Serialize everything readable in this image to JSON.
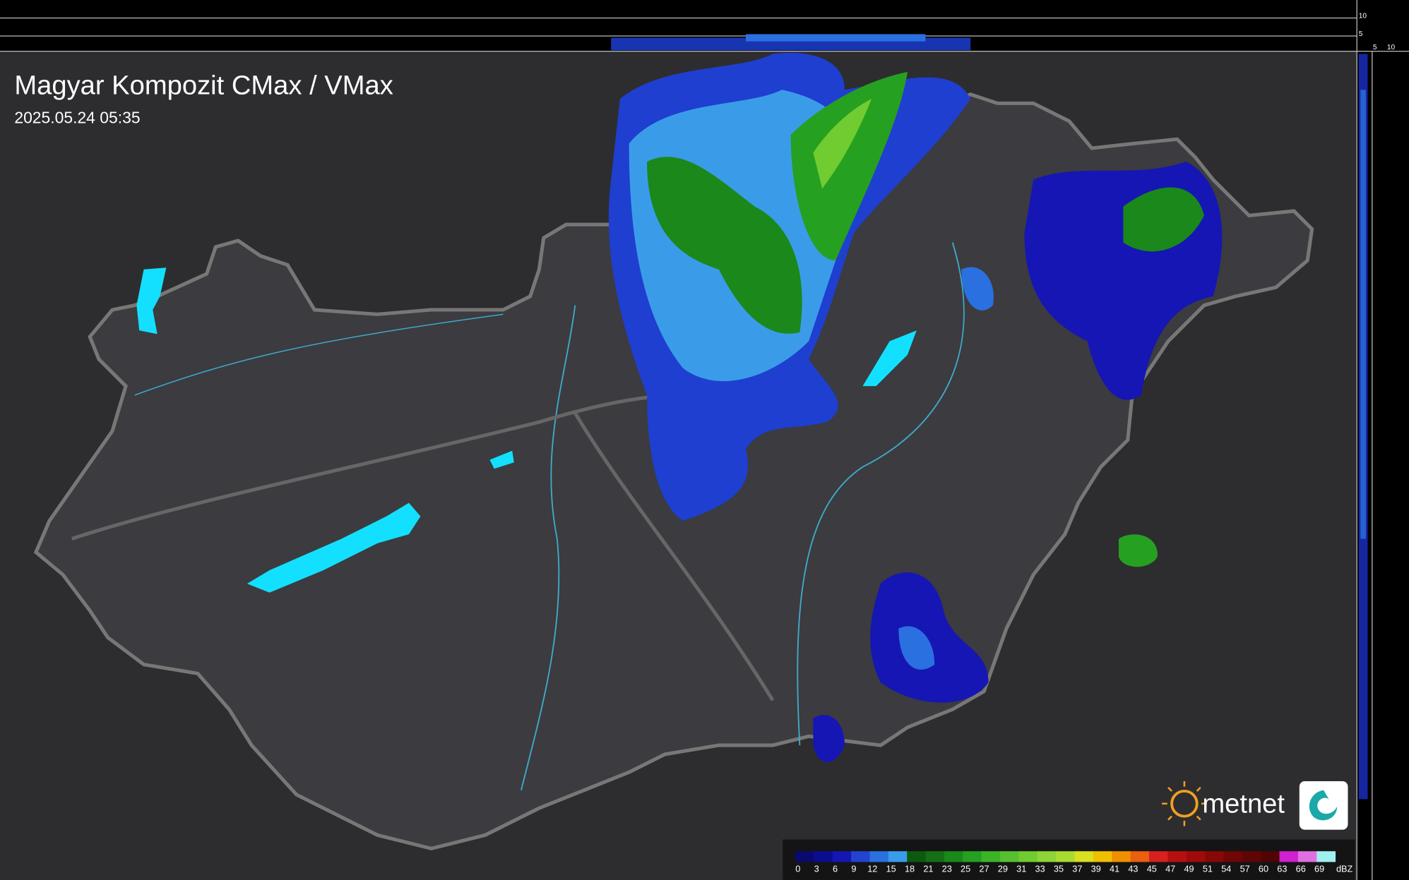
{
  "header": {
    "title": "Magyar Kompozit CMax / VMax",
    "timestamp": "2025.05.24 05:35"
  },
  "side_scale": {
    "y_labels": [
      10,
      5
    ],
    "x_labels": [
      5,
      10
    ]
  },
  "legend": {
    "unit": "dBZ",
    "steps": [
      {
        "label": 0,
        "color": "#0a0a6e"
      },
      {
        "label": 3,
        "color": "#0c0c90"
      },
      {
        "label": 6,
        "color": "#1616b4"
      },
      {
        "label": 9,
        "color": "#2244d0"
      },
      {
        "label": 12,
        "color": "#2a70e0"
      },
      {
        "label": 15,
        "color": "#3a9ce8"
      },
      {
        "label": 18,
        "color": "#0c5a10"
      },
      {
        "label": 21,
        "color": "#137014"
      },
      {
        "label": 23,
        "color": "#1a881a"
      },
      {
        "label": 25,
        "color": "#26a020"
      },
      {
        "label": 27,
        "color": "#3cb428"
      },
      {
        "label": 29,
        "color": "#56c030"
      },
      {
        "label": 31,
        "color": "#70cc30"
      },
      {
        "label": 33,
        "color": "#8ed438"
      },
      {
        "label": 35,
        "color": "#a8dc30"
      },
      {
        "label": 37,
        "color": "#d8e020"
      },
      {
        "label": 39,
        "color": "#f0c000"
      },
      {
        "label": 41,
        "color": "#f09000"
      },
      {
        "label": 43,
        "color": "#e86010"
      },
      {
        "label": 45,
        "color": "#d82020"
      },
      {
        "label": 47,
        "color": "#b81010"
      },
      {
        "label": 49,
        "color": "#a00a0a"
      },
      {
        "label": 51,
        "color": "#880808"
      },
      {
        "label": 54,
        "color": "#700606"
      },
      {
        "label": 57,
        "color": "#600505"
      },
      {
        "label": 60,
        "color": "#500404"
      },
      {
        "label": 63,
        "color": "#d020d0"
      },
      {
        "label": 66,
        "color": "#e070e0"
      },
      {
        "label": 69,
        "color": "#a0f0f0"
      }
    ]
  },
  "logo": {
    "text": "metnet"
  }
}
